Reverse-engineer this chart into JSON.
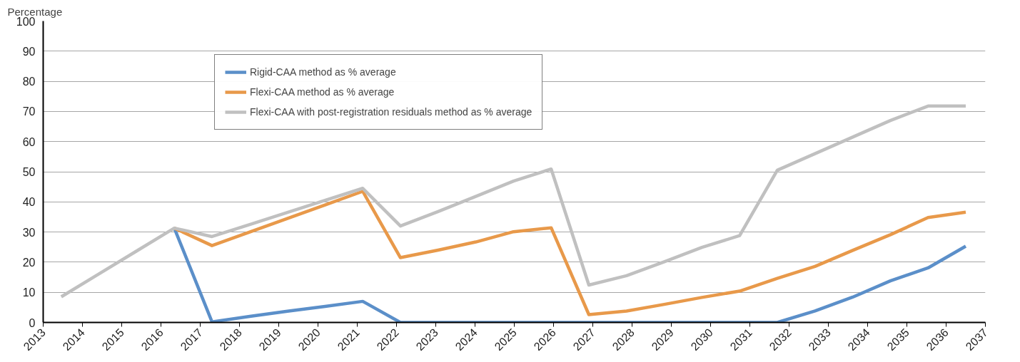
{
  "chart_data": {
    "type": "line",
    "ylabel": "Percentage",
    "x": [
      2013.46,
      2014.42,
      2015.38,
      2016.34,
      2017.3,
      2018.26,
      2019.22,
      2020.18,
      2021.14,
      2022.1,
      2023.06,
      2024.02,
      2024.98,
      2025.94,
      2026.9,
      2027.86,
      2028.82,
      2029.78,
      2030.74,
      2031.7,
      2032.66,
      2033.62,
      2034.58,
      2035.54,
      2036.5
    ],
    "series": [
      {
        "name": "Rigid-CAA method as % average",
        "color": "#5b8fc9",
        "values": [
          null,
          null,
          null,
          31.3,
          0.2,
          2,
          3.7,
          5.3,
          7,
          0,
          0,
          0,
          0,
          0,
          0,
          0,
          0,
          0,
          0,
          0,
          3.8,
          8.4,
          13.8,
          18.1,
          25.3
        ]
      },
      {
        "name": "Flexi-CAA method as % average",
        "color": "#e8994a",
        "values": [
          null,
          null,
          null,
          31.3,
          25.5,
          30,
          34.5,
          39,
          43.5,
          21.5,
          24,
          26.7,
          30.1,
          31.4,
          2.6,
          3.8,
          6,
          8.3,
          10.4,
          14.6,
          18.6,
          23.9,
          29.1,
          34.8,
          36.6
        ]
      },
      {
        "name": "Flexi-CAA with post-registration residuals method as % average",
        "color": "#c0c0c0",
        "values": [
          8.5,
          16.1,
          23.7,
          31.3,
          28.5,
          32.5,
          36.5,
          40.5,
          44.5,
          32,
          36.8,
          41.8,
          46.9,
          50.9,
          12.4,
          15.5,
          20.1,
          24.9,
          28.8,
          50.5,
          56,
          61.5,
          67,
          71.8,
          71.8
        ]
      }
    ],
    "xlim": [
      2013,
      2037
    ],
    "xticks": [
      2013,
      2014,
      2015,
      2016,
      2017,
      2018,
      2019,
      2020,
      2021,
      2022,
      2023,
      2024,
      2025,
      2026,
      2027,
      2028,
      2029,
      2030,
      2031,
      2032,
      2033,
      2034,
      2035,
      2036,
      2037
    ],
    "ylim": [
      0,
      100
    ],
    "yticks": [
      0,
      10,
      20,
      30,
      40,
      50,
      60,
      70,
      80,
      90,
      100
    ],
    "grid": "y",
    "legend": "top left",
    "marker": "none",
    "line_style": "solid"
  }
}
